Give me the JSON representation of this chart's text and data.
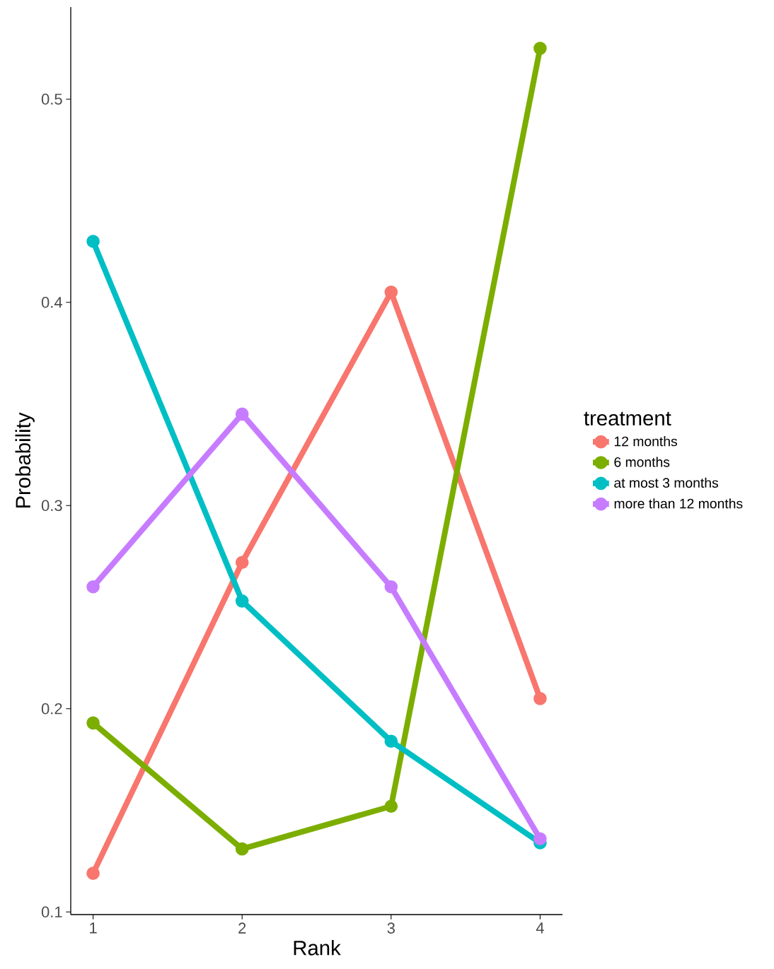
{
  "chart_data": {
    "type": "line",
    "xlabel": "Rank",
    "ylabel": "Probability",
    "legend_title": "treatment",
    "x": [
      1,
      2,
      3,
      4
    ],
    "series": [
      {
        "name": "12 months",
        "color": "#f8766d",
        "values": [
          0.119,
          0.272,
          0.405,
          0.205
        ]
      },
      {
        "name": "6 months",
        "color": "#7cae00",
        "values": [
          0.193,
          0.131,
          0.152,
          0.525
        ]
      },
      {
        "name": "at most 3 months",
        "color": "#00bfc4",
        "values": [
          0.43,
          0.253,
          0.184,
          0.134
        ]
      },
      {
        "name": "more than 12 months",
        "color": "#c77cff",
        "values": [
          0.26,
          0.345,
          0.26,
          0.136
        ]
      }
    ],
    "xlim": [
      0.85,
      4.15
    ],
    "ylim": [
      0.0987,
      0.5453
    ],
    "xticks": [
      1,
      2,
      3,
      4
    ],
    "yticks": [
      0.1,
      0.2,
      0.3,
      0.4,
      0.5
    ],
    "grid": false,
    "legend": "right",
    "marker": "circle",
    "line_style": "solid"
  }
}
